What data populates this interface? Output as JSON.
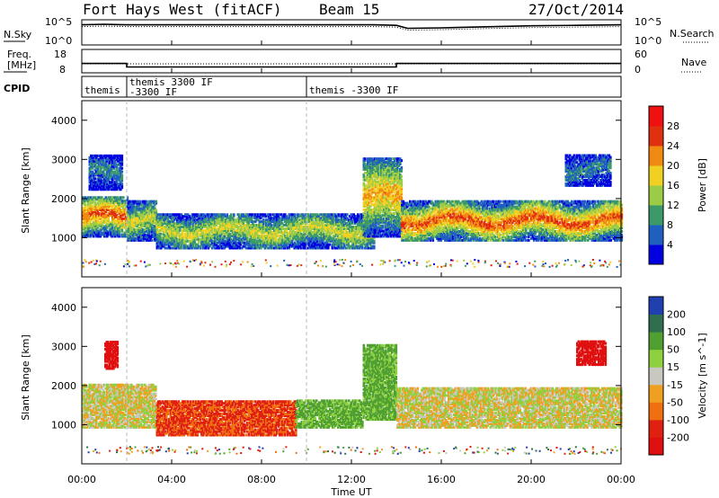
{
  "header": {
    "station": "Fort Hays West (fitACF)",
    "beam": "Beam 15",
    "date": "27/Oct/2014"
  },
  "noise_panel": {
    "left_label": "N.Sky",
    "left_ticks": [
      "10^5",
      "10^0"
    ],
    "right_label": "N.Search",
    "right_ticks": [
      "10^5",
      "10^0"
    ]
  },
  "freq_panel": {
    "left_label_1": "Freq.",
    "left_label_2": "[MHz]",
    "left_ticks": [
      "18",
      "8"
    ],
    "right_label": "Nave",
    "right_ticks": [
      "60",
      "0"
    ]
  },
  "cpid_panel": {
    "label": "CPID",
    "entries": [
      {
        "lines": [
          "themis"
        ]
      },
      {
        "lines": [
          "themis 3300 IF",
          "-3300 IF"
        ]
      },
      {
        "lines": [
          "themis -3300 IF"
        ]
      }
    ]
  },
  "x_axis": {
    "label": "Time UT",
    "ticks": [
      "00:00",
      "04:00",
      "08:00",
      "12:00",
      "16:00",
      "20:00",
      "00:00"
    ]
  },
  "power_panel": {
    "ylabel": "Slant Range [km]",
    "yticks": [
      "1000",
      "2000",
      "3000",
      "4000"
    ],
    "colorbar_label": "Power [dB]",
    "colorbar_ticks": [
      "4",
      "8",
      "12",
      "16",
      "20",
      "24",
      "28"
    ],
    "colors": [
      "#0000e0",
      "#1f5fc0",
      "#3c9a6a",
      "#9ccc45",
      "#f0d020",
      "#f08a10",
      "#e03010",
      "#f01010"
    ]
  },
  "velocity_panel": {
    "ylabel": "Slant Range [km]",
    "yticks": [
      "1000",
      "2000",
      "3000",
      "4000"
    ],
    "colorbar_label": "Velocity [m s^-1]",
    "colorbar_ticks": [
      "200",
      "100",
      "50",
      "15",
      "-15",
      "-50",
      "-100",
      "-200"
    ],
    "colors": [
      "#2040b0",
      "#2f6f4f",
      "#4fa030",
      "#8ed040",
      "#c8c8c0",
      "#f0a020",
      "#f07010",
      "#e02010",
      "#e01010"
    ]
  },
  "chart_data": [
    {
      "type": "line",
      "title": "Fort Hays West (fitACF)",
      "series": [
        {
          "name": "N.Sky",
          "x": [
            0,
            1,
            2,
            4,
            6,
            8,
            10,
            12,
            13,
            14,
            14.5,
            16,
            18,
            20,
            22,
            24
          ],
          "y": [
            4.0,
            4.1,
            4.0,
            4.0,
            4.0,
            4.0,
            4.0,
            4.0,
            4.0,
            3.9,
            3.3,
            3.4,
            3.6,
            3.8,
            3.9,
            4.0
          ]
        }
      ],
      "xlabel": "",
      "ylabel": ""
    },
    {
      "type": "line",
      "series": [
        {
          "name": "Freq.",
          "x": [
            0,
            2,
            2,
            14,
            14,
            24
          ],
          "y": [
            12,
            12,
            10.5,
            10.5,
            12,
            12
          ]
        },
        {
          "name": "Nave",
          "x": [
            0,
            24
          ],
          "y": [
            12,
            12
          ]
        }
      ]
    },
    {
      "type": "heatmap",
      "quantity": "Power [dB]",
      "xlabel": "Time UT",
      "ylabel": "Slant Range [km]",
      "xlim": [
        0,
        24
      ],
      "ylim": [
        0,
        4500
      ],
      "zlim": [
        0,
        30
      ],
      "bands": [
        {
          "t0": 0,
          "t1": 2,
          "r_low": 1000,
          "r_high": 2000,
          "peak": 24
        },
        {
          "t0": 0.3,
          "t1": 1.8,
          "r_low": 2200,
          "r_high": 3100,
          "peak": 8
        },
        {
          "t0": 2,
          "t1": 3.3,
          "r_low": 900,
          "r_high": 1900,
          "peak": 16
        },
        {
          "t0": 3.3,
          "t1": 13,
          "r_low": 700,
          "r_high": 1600,
          "peak": 16
        },
        {
          "t0": 12.5,
          "t1": 14.2,
          "r_low": 1000,
          "r_high": 3000,
          "peak": 20
        },
        {
          "t0": 14.2,
          "t1": 24,
          "r_low": 900,
          "r_high": 1900,
          "peak": 24
        },
        {
          "t0": 21.5,
          "t1": 23.5,
          "r_low": 2300,
          "r_high": 3100,
          "peak": 8
        }
      ]
    },
    {
      "type": "heatmap",
      "quantity": "Velocity [m s^-1]",
      "xlabel": "Time UT",
      "ylabel": "Slant Range [km]",
      "xlim": [
        0,
        24
      ],
      "ylim": [
        0,
        4500
      ],
      "zlim": [
        -200,
        200
      ],
      "bands": [
        {
          "t0": 0,
          "t1": 3.3,
          "r_low": 900,
          "r_high": 2000,
          "vel": 0
        },
        {
          "t0": 1,
          "t1": 1.6,
          "r_low": 2400,
          "r_high": 3100,
          "vel": -200
        },
        {
          "t0": 3.3,
          "t1": 9.5,
          "r_low": 700,
          "r_high": 1600,
          "vel": -80
        },
        {
          "t0": 9.5,
          "t1": 12.5,
          "r_low": 900,
          "r_high": 1600,
          "vel": 40
        },
        {
          "t0": 12.5,
          "t1": 14,
          "r_low": 1100,
          "r_high": 3000,
          "vel": 40
        },
        {
          "t0": 14,
          "t1": 24,
          "r_low": 900,
          "r_high": 1900,
          "vel": 0
        },
        {
          "t0": 22,
          "t1": 23.3,
          "r_low": 2500,
          "r_high": 3100,
          "vel": -200
        }
      ]
    }
  ]
}
